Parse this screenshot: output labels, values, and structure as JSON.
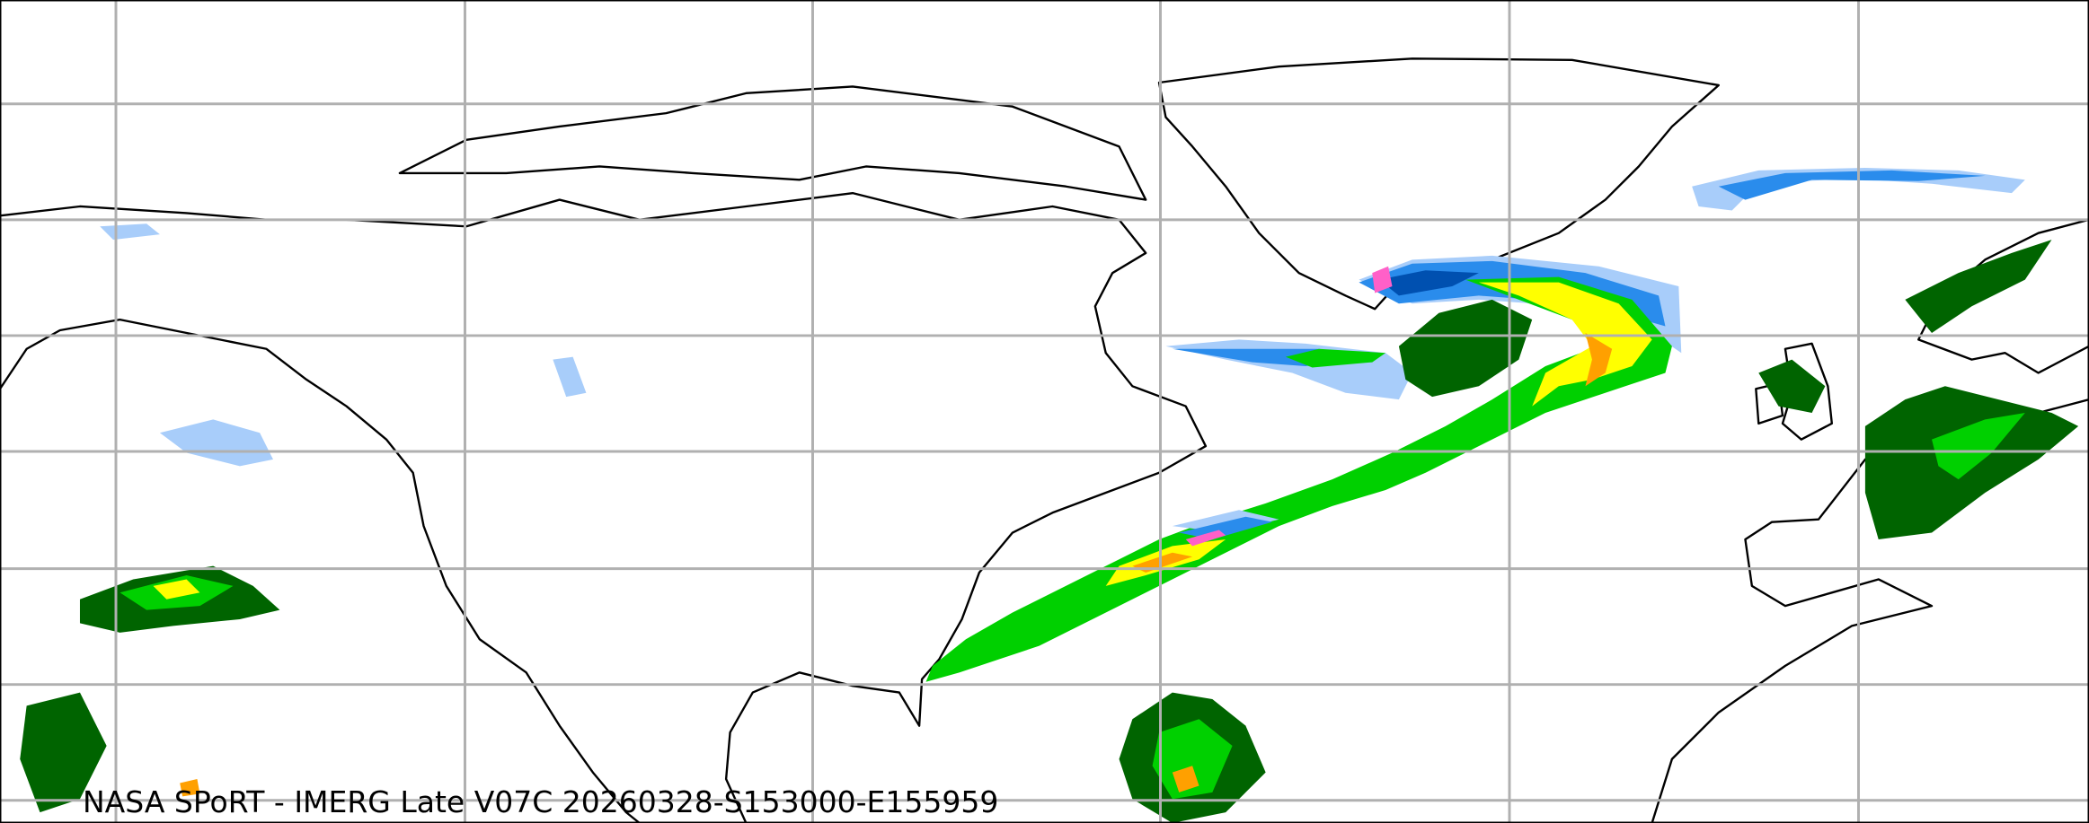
{
  "caption": "NASA SPoRT - IMERG Late V07C 20260328-S153000-E155959",
  "colors": {
    "land_outline": "#000000",
    "gridline": "#b0b0b0",
    "background": "#ffffff",
    "precip_light_blue": "#a8cdfa",
    "precip_blue": "#2a8cec",
    "precip_dark_blue": "#0050b0",
    "precip_dark_green": "#006400",
    "precip_green": "#00d000",
    "precip_light_green": "#a0f000",
    "precip_yellow": "#ffff00",
    "precip_orange": "#ffa000",
    "precip_pink": "#ff60c8"
  },
  "layers": [
    "coastlines",
    "political-borders",
    "lat-lon-gridlines",
    "imerg-precipitation"
  ]
}
